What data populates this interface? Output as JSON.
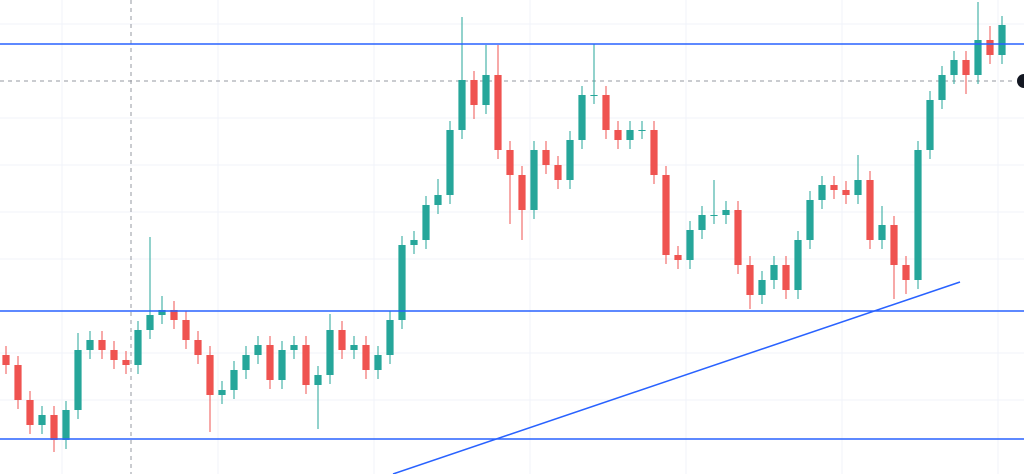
{
  "chart_data": {
    "type": "candlestick",
    "ylim": [
      0,
      474
    ],
    "up_color": "#26a69a",
    "down_color": "#ef5350",
    "levels": [
      430,
      163,
      35
    ],
    "level_color": "#2962ff",
    "open": [
      119,
      109,
      74,
      49,
      59,
      34,
      64,
      124,
      134,
      124,
      114,
      109,
      144,
      159,
      164,
      154,
      134,
      119,
      79,
      84,
      104,
      119,
      129,
      94,
      124,
      129,
      89,
      99,
      144,
      124,
      129,
      104,
      119,
      154,
      229,
      234,
      269,
      279,
      344,
      394,
      369,
      399,
      324,
      299,
      264,
      324,
      309,
      294,
      334,
      379,
      379,
      344,
      334,
      344,
      344,
      299,
      219,
      214,
      244,
      259,
      259,
      264,
      209,
      179,
      194,
      209,
      184,
      234,
      274,
      289,
      284,
      279,
      294,
      234,
      249,
      209,
      194,
      324,
      374,
      399,
      414,
      399,
      434,
      419
    ],
    "high": [
      128,
      118,
      83,
      68,
      68,
      73,
      141,
      143,
      143,
      133,
      123,
      153,
      237,
      178,
      173,
      163,
      143,
      128,
      93,
      113,
      128,
      138,
      138,
      133,
      138,
      138,
      108,
      160,
      153,
      138,
      138,
      128,
      163,
      238,
      243,
      278,
      295,
      353,
      457,
      403,
      429,
      429,
      333,
      308,
      333,
      333,
      318,
      343,
      388,
      430,
      388,
      353,
      353,
      353,
      353,
      308,
      228,
      253,
      268,
      294,
      273,
      273,
      218,
      203,
      218,
      218,
      243,
      283,
      298,
      298,
      293,
      319,
      303,
      268,
      258,
      218,
      333,
      383,
      408,
      423,
      423,
      472,
      448,
      458
    ],
    "low": [
      100,
      65,
      40,
      40,
      22,
      25,
      55,
      115,
      115,
      105,
      100,
      100,
      135,
      150,
      145,
      125,
      110,
      42,
      70,
      75,
      95,
      110,
      85,
      85,
      115,
      80,
      45,
      90,
      115,
      115,
      95,
      95,
      110,
      145,
      220,
      225,
      260,
      270,
      335,
      355,
      360,
      315,
      250,
      234,
      255,
      300,
      285,
      285,
      325,
      370,
      335,
      325,
      325,
      335,
      290,
      210,
      205,
      205,
      235,
      250,
      250,
      200,
      165,
      170,
      185,
      175,
      175,
      225,
      265,
      275,
      270,
      270,
      225,
      225,
      175,
      180,
      185,
      315,
      365,
      390,
      380,
      390,
      410,
      410
    ],
    "close": [
      109,
      74,
      49,
      59,
      34,
      64,
      124,
      134,
      124,
      114,
      109,
      144,
      159,
      164,
      154,
      134,
      119,
      79,
      84,
      104,
      119,
      129,
      94,
      124,
      129,
      89,
      99,
      144,
      124,
      129,
      104,
      119,
      154,
      229,
      234,
      269,
      279,
      344,
      394,
      369,
      399,
      324,
      299,
      264,
      324,
      309,
      294,
      334,
      379,
      379,
      344,
      334,
      344,
      344,
      299,
      219,
      214,
      244,
      259,
      259,
      264,
      209,
      179,
      194,
      209,
      184,
      234,
      274,
      289,
      284,
      279,
      294,
      234,
      249,
      209,
      194,
      324,
      374,
      399,
      414,
      399,
      434,
      419,
      449
    ]
  }
}
